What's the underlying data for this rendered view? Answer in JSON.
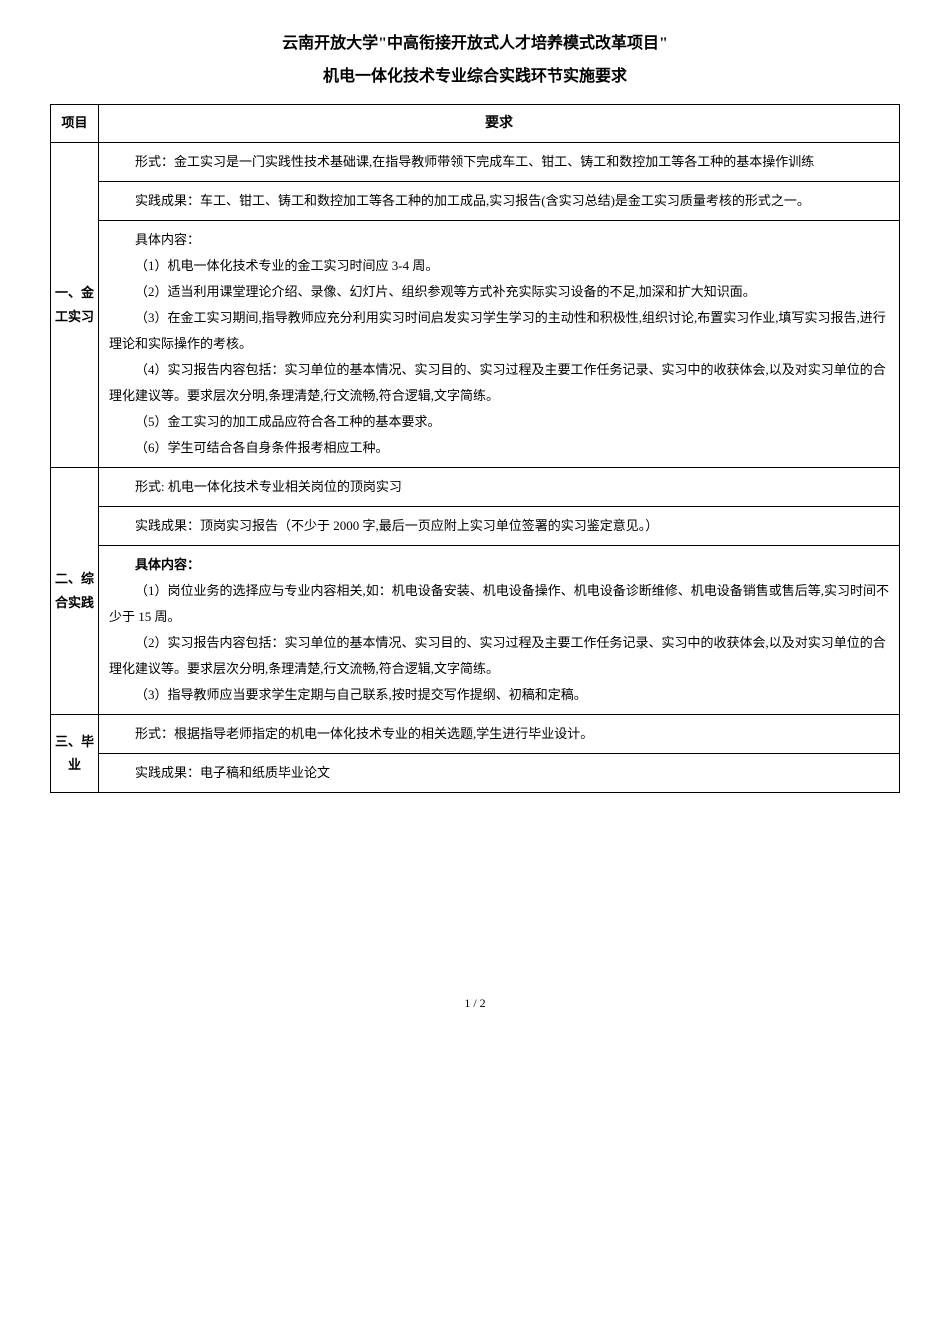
{
  "header": {
    "title": "云南开放大学\"中高衔接开放式人才培养模式改革项目\"",
    "subtitle": "机电一体化技术专业综合实践环节实施要求"
  },
  "table": {
    "headers": {
      "col1": "项目",
      "col2": "要求"
    },
    "sections": [
      {
        "label": "一、金工实习",
        "rows": [
          {
            "text": "形式：金工实习是一门实践性技术基础课,在指导教师带领下完成车工、钳工、铸工和数控加工等各工种的基本操作训练"
          },
          {
            "text": "实践成果：车工、钳工、铸工和数控加工等各工种的加工成品,实习报告(含实习总结)是金工实习质量考核的形式之一。"
          },
          {
            "lines": [
              "具体内容：",
              "（1）机电一体化技术专业的金工实习时间应 3-4 周。",
              "（2）适当利用课堂理论介绍、录像、幻灯片、组织参观等方式补充实际实习设备的不足,加深和扩大知识面。",
              "（3）在金工实习期间,指导教师应充分利用实习时间启发实习学生学习的主动性和积极性,组织讨论,布置实习作业,填写实习报告,进行理论和实际操作的考核。",
              "（4）实习报告内容包括：实习单位的基本情况、实习目的、实习过程及主要工作任务记录、实习中的收获体会,以及对实习单位的合理化建议等。要求层次分明,条理清楚,行文流畅,符合逻辑,文字简练。",
              "（5）金工实习的加工成品应符合各工种的基本要求。",
              "（6）学生可结合各自身条件报考相应工种。"
            ]
          }
        ]
      },
      {
        "label": "二、综合实践",
        "rows": [
          {
            "text": "形式: 机电一体化技术专业相关岗位的顶岗实习"
          },
          {
            "text": "实践成果：顶岗实习报告（不少于 2000 字,最后一页应附上实习单位签署的实习鉴定意见。）"
          },
          {
            "lines": [
              "具体内容：",
              "（1）岗位业务的选择应与专业内容相关,如：机电设备安装、机电设备操作、机电设备诊断维修、机电设备销售或售后等,实习时间不少于 15 周。",
              "（2）实习报告内容包括：实习单位的基本情况、实习目的、实习过程及主要工作任务记录、实习中的收获体会,以及对实习单位的合理化建议等。要求层次分明,条理清楚,行文流畅,符合逻辑,文字简练。",
              "（3）指导教师应当要求学生定期与自己联系,按时提交写作提纲、初稿和定稿。"
            ]
          }
        ]
      },
      {
        "label": "三、毕业",
        "rows": [
          {
            "text": "形式：根据指导老师指定的机电一体化技术专业的相关选题,学生进行毕业设计。"
          },
          {
            "text": "实践成果：电子稿和纸质毕业论文"
          }
        ]
      }
    ]
  },
  "pageNumber": "1 / 2"
}
